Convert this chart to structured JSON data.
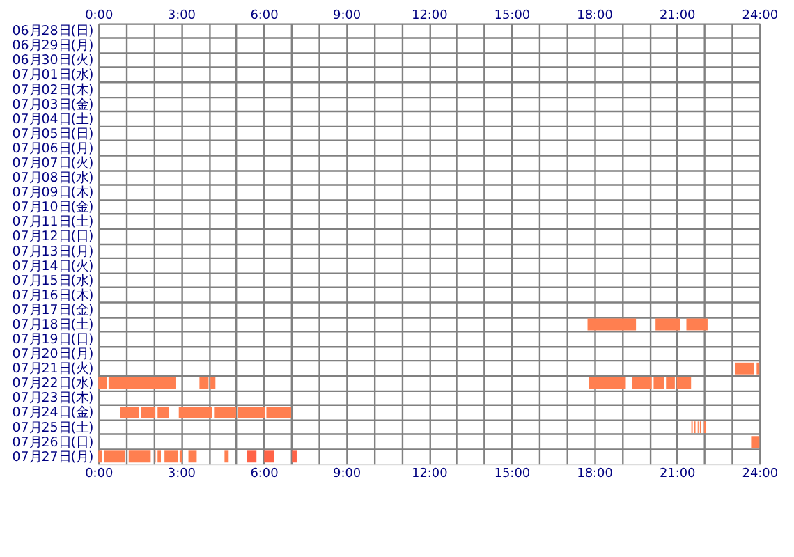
{
  "chart_data": {
    "type": "bar",
    "orientation": "horizontal",
    "grid": true,
    "categories": [
      "06月28日(日)",
      "06月29日(月)",
      "06月30日(火)",
      "07月01日(水)",
      "07月02日(木)",
      "07月03日(金)",
      "07月04日(土)",
      "07月05日(日)",
      "07月06日(月)",
      "07月07日(火)",
      "07月08日(水)",
      "07月09日(木)",
      "07月10日(金)",
      "07月11日(土)",
      "07月12日(日)",
      "07月13日(月)",
      "07月14日(火)",
      "07月15日(水)",
      "07月16日(木)",
      "07月17日(金)",
      "07月18日(土)",
      "07月19日(日)",
      "07月20日(月)",
      "07月21日(火)",
      "07月22日(水)",
      "07月23日(木)",
      "07月24日(金)",
      "07月25日(土)",
      "07月26日(日)",
      "07月27日(月)"
    ],
    "xlim": [
      0,
      24
    ],
    "xticks": [
      {
        "value": 0,
        "label": "0:00"
      },
      {
        "value": 1,
        "label": null
      },
      {
        "value": 2,
        "label": null
      },
      {
        "value": 3,
        "label": "3:00"
      },
      {
        "value": 4,
        "label": null
      },
      {
        "value": 5,
        "label": null
      },
      {
        "value": 6,
        "label": "6:00"
      },
      {
        "value": 7,
        "label": null
      },
      {
        "value": 8,
        "label": null
      },
      {
        "value": 9,
        "label": "9:00"
      },
      {
        "value": 10,
        "label": null
      },
      {
        "value": 11,
        "label": null
      },
      {
        "value": 12,
        "label": "12:00"
      },
      {
        "value": 13,
        "label": null
      },
      {
        "value": 14,
        "label": null
      },
      {
        "value": 15,
        "label": "15:00"
      },
      {
        "value": 16,
        "label": null
      },
      {
        "value": 17,
        "label": null
      },
      {
        "value": 18,
        "label": "18:00"
      },
      {
        "value": 19,
        "label": null
      },
      {
        "value": 20,
        "label": null
      },
      {
        "value": 21,
        "label": "21:00"
      },
      {
        "value": 22,
        "label": null
      },
      {
        "value": 23,
        "label": null
      },
      {
        "value": 24,
        "label": "24:00"
      }
    ],
    "x2lim": [
      0,
      24
    ],
    "x2ticks": [
      {
        "value": 0,
        "label": "0:00"
      },
      {
        "value": 3,
        "label": "3:00"
      },
      {
        "value": 6,
        "label": "6:00"
      },
      {
        "value": 9,
        "label": "9:00"
      },
      {
        "value": 12,
        "label": "12:00"
      },
      {
        "value": 15,
        "label": "15:00"
      },
      {
        "value": 18,
        "label": "18:00"
      },
      {
        "value": 21,
        "label": "21:00"
      },
      {
        "value": 24,
        "label": "24:00"
      }
    ],
    "series": [
      {
        "color": "#ff7f50",
        "base": [
          null,
          null,
          null,
          null,
          null,
          null,
          null,
          null,
          null,
          null,
          null,
          null,
          null,
          null,
          null,
          null,
          null,
          null,
          null,
          null,
          17.76,
          null,
          null,
          23.13,
          0,
          null,
          0.8,
          21.53,
          23.7,
          0
        ],
        "values": [
          null,
          null,
          null,
          null,
          null,
          null,
          null,
          null,
          null,
          null,
          null,
          null,
          null,
          null,
          null,
          null,
          null,
          null,
          null,
          null,
          1.76,
          null,
          null,
          0.67,
          0.3,
          null,
          0.67,
          0.05,
          0.3,
          0.13
        ]
      },
      {
        "color": "#ff7f50",
        "base": [
          null,
          null,
          null,
          null,
          null,
          null,
          null,
          null,
          null,
          null,
          null,
          null,
          null,
          null,
          null,
          null,
          null,
          null,
          null,
          null,
          20.23,
          null,
          null,
          23.9,
          0.37,
          null,
          1.55,
          21.63,
          null,
          0.2
        ],
        "values": [
          null,
          null,
          null,
          null,
          null,
          null,
          null,
          null,
          null,
          null,
          null,
          null,
          null,
          null,
          null,
          null,
          null,
          null,
          null,
          null,
          0.9,
          null,
          null,
          0.1,
          2.43,
          null,
          0.52,
          0.05,
          null,
          0.77
        ]
      },
      {
        "color": "#ff7f50",
        "base": [
          null,
          null,
          null,
          null,
          null,
          null,
          null,
          null,
          null,
          null,
          null,
          null,
          null,
          null,
          null,
          null,
          null,
          null,
          null,
          null,
          21.35,
          null,
          null,
          null,
          3.67,
          null,
          2.15,
          21.76,
          null,
          1.1
        ],
        "values": [
          null,
          null,
          null,
          null,
          null,
          null,
          null,
          null,
          null,
          null,
          null,
          null,
          null,
          null,
          null,
          null,
          null,
          null,
          null,
          null,
          0.77,
          null,
          null,
          null,
          0.33,
          null,
          0.42,
          0.03,
          null,
          0.8
        ]
      },
      {
        "color": "#ff7f50",
        "base": [
          null,
          null,
          null,
          null,
          null,
          null,
          null,
          null,
          null,
          null,
          null,
          null,
          null,
          null,
          null,
          null,
          null,
          null,
          null,
          null,
          null,
          null,
          null,
          null,
          4.07,
          null,
          2.92,
          21.84,
          null,
          2.05
        ],
        "values": [
          null,
          null,
          null,
          null,
          null,
          null,
          null,
          null,
          null,
          null,
          null,
          null,
          null,
          null,
          null,
          null,
          null,
          null,
          null,
          null,
          null,
          null,
          null,
          null,
          0.18,
          null,
          1.22,
          0.05,
          null,
          0.03
        ]
      },
      {
        "color": "#ff7f50",
        "base": [
          null,
          null,
          null,
          null,
          null,
          null,
          null,
          null,
          null,
          null,
          null,
          null,
          null,
          null,
          null,
          null,
          null,
          null,
          null,
          null,
          null,
          null,
          null,
          null,
          17.81,
          null,
          4.2,
          21.99,
          null,
          2.15
        ],
        "values": [
          null,
          null,
          null,
          null,
          null,
          null,
          null,
          null,
          null,
          null,
          null,
          null,
          null,
          null,
          null,
          null,
          null,
          null,
          null,
          null,
          null,
          null,
          null,
          null,
          1.34,
          null,
          0.8,
          0.08,
          null,
          0.12
        ]
      },
      {
        "color": "#ff7f50",
        "base": [
          null,
          null,
          null,
          null,
          null,
          null,
          null,
          null,
          null,
          null,
          null,
          null,
          null,
          null,
          null,
          null,
          null,
          null,
          null,
          null,
          null,
          null,
          null,
          null,
          19.37,
          null,
          5.05,
          null,
          null,
          2.4
        ],
        "values": [
          null,
          null,
          null,
          null,
          null,
          null,
          null,
          null,
          null,
          null,
          null,
          null,
          null,
          null,
          null,
          null,
          null,
          null,
          null,
          null,
          null,
          null,
          null,
          null,
          0.72,
          null,
          1.0,
          null,
          null,
          0.48
        ]
      },
      {
        "color": "#ff7f50",
        "base": [
          null,
          null,
          null,
          null,
          null,
          null,
          null,
          null,
          null,
          null,
          null,
          null,
          null,
          null,
          null,
          null,
          null,
          null,
          null,
          null,
          null,
          null,
          null,
          null,
          20.16,
          null,
          6.1,
          null,
          null,
          2.95
        ],
        "values": [
          null,
          null,
          null,
          null,
          null,
          null,
          null,
          null,
          null,
          null,
          null,
          null,
          null,
          null,
          null,
          null,
          null,
          null,
          null,
          null,
          null,
          null,
          null,
          null,
          0.38,
          null,
          0.9,
          null,
          null,
          0.1
        ]
      },
      {
        "color": "#ff7f50",
        "base": [
          null,
          null,
          null,
          null,
          null,
          null,
          null,
          null,
          null,
          null,
          null,
          null,
          null,
          null,
          null,
          null,
          null,
          null,
          null,
          null,
          null,
          null,
          null,
          null,
          20.61,
          null,
          null,
          null,
          null,
          3.27
        ],
        "values": [
          null,
          null,
          null,
          null,
          null,
          null,
          null,
          null,
          null,
          null,
          null,
          null,
          null,
          null,
          null,
          null,
          null,
          null,
          null,
          null,
          null,
          null,
          null,
          null,
          0.32,
          null,
          null,
          null,
          null,
          0.3
        ]
      },
      {
        "color": "#ff7f50",
        "base": [
          null,
          null,
          null,
          null,
          null,
          null,
          null,
          null,
          null,
          null,
          null,
          null,
          null,
          null,
          null,
          null,
          null,
          null,
          null,
          null,
          null,
          null,
          null,
          null,
          21.0,
          null,
          null,
          null,
          null,
          4.58
        ],
        "values": [
          null,
          null,
          null,
          null,
          null,
          null,
          null,
          null,
          null,
          null,
          null,
          null,
          null,
          null,
          null,
          null,
          null,
          null,
          null,
          null,
          null,
          null,
          null,
          null,
          0.52,
          null,
          null,
          null,
          null,
          0.15
        ]
      },
      {
        "color": "#ff6347",
        "base": [
          null,
          null,
          null,
          null,
          null,
          null,
          null,
          null,
          null,
          null,
          null,
          null,
          null,
          null,
          null,
          null,
          null,
          null,
          null,
          null,
          null,
          null,
          null,
          null,
          null,
          null,
          null,
          null,
          null,
          5.38
        ],
        "values": [
          null,
          null,
          null,
          null,
          null,
          null,
          null,
          null,
          null,
          null,
          null,
          null,
          null,
          null,
          null,
          null,
          null,
          null,
          null,
          null,
          null,
          null,
          null,
          null,
          null,
          null,
          null,
          null,
          null,
          0.36
        ]
      },
      {
        "color": "#ff6347",
        "base": [
          null,
          null,
          null,
          null,
          null,
          null,
          null,
          null,
          null,
          null,
          null,
          null,
          null,
          null,
          null,
          null,
          null,
          null,
          null,
          null,
          null,
          null,
          null,
          null,
          null,
          null,
          null,
          null,
          null,
          6.02
        ],
        "values": [
          null,
          null,
          null,
          null,
          null,
          null,
          null,
          null,
          null,
          null,
          null,
          null,
          null,
          null,
          null,
          null,
          null,
          null,
          null,
          null,
          null,
          null,
          null,
          null,
          null,
          null,
          null,
          null,
          null,
          0.37
        ]
      },
      {
        "color": "#ff6347",
        "base": [
          null,
          null,
          null,
          null,
          null,
          null,
          null,
          null,
          null,
          null,
          null,
          null,
          null,
          null,
          null,
          null,
          null,
          null,
          null,
          null,
          null,
          null,
          null,
          null,
          null,
          null,
          null,
          null,
          null,
          7.03
        ],
        "values": [
          null,
          null,
          null,
          null,
          null,
          null,
          null,
          null,
          null,
          null,
          null,
          null,
          null,
          null,
          null,
          null,
          null,
          null,
          null,
          null,
          null,
          null,
          null,
          null,
          null,
          null,
          null,
          null,
          null,
          0.17
        ]
      }
    ]
  }
}
